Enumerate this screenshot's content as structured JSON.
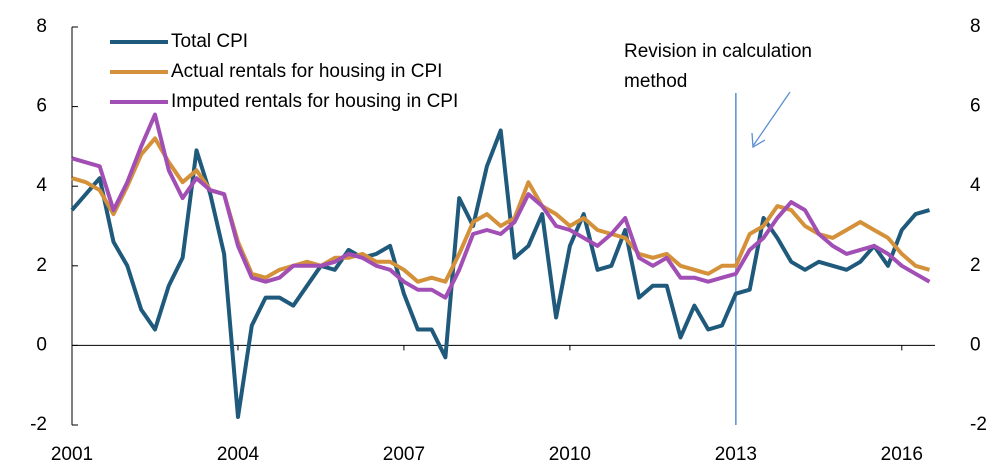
{
  "chart_data": {
    "type": "line",
    "x": [
      2001,
      2001.25,
      2001.5,
      2001.75,
      2002,
      2002.25,
      2002.5,
      2002.75,
      2003,
      2003.25,
      2003.5,
      2003.75,
      2004,
      2004.25,
      2004.5,
      2004.75,
      2005,
      2005.25,
      2005.5,
      2005.75,
      2006,
      2006.25,
      2006.5,
      2006.75,
      2007,
      2007.25,
      2007.5,
      2007.75,
      2008,
      2008.25,
      2008.5,
      2008.75,
      2009,
      2009.25,
      2009.5,
      2009.75,
      2010,
      2010.25,
      2010.5,
      2010.75,
      2011,
      2011.25,
      2011.5,
      2011.75,
      2012,
      2012.25,
      2012.5,
      2012.75,
      2013,
      2013.25,
      2013.5,
      2013.75,
      2014,
      2014.25,
      2014.5,
      2014.75,
      2015,
      2015.25,
      2015.5,
      2015.75,
      2016,
      2016.25,
      2016.5
    ],
    "series": [
      {
        "name": "Total CPI",
        "color": "#1f5a7c",
        "values": [
          3.4,
          3.8,
          4.2,
          2.6,
          2.0,
          0.9,
          0.4,
          1.5,
          2.2,
          4.9,
          3.8,
          2.3,
          -1.8,
          0.5,
          1.2,
          1.2,
          1.0,
          1.5,
          2.0,
          1.9,
          2.4,
          2.2,
          2.3,
          2.5,
          1.3,
          0.4,
          0.4,
          -0.3,
          3.7,
          3.0,
          4.5,
          5.4,
          2.2,
          2.5,
          3.3,
          0.7,
          2.5,
          3.3,
          1.9,
          2.0,
          2.9,
          1.2,
          1.5,
          1.5,
          0.2,
          1.0,
          0.4,
          0.5,
          1.3,
          1.4,
          3.2,
          2.7,
          2.1,
          1.9,
          2.1,
          2.0,
          1.9,
          2.1,
          2.5,
          2.0,
          2.9,
          3.3,
          3.4
        ]
      },
      {
        "name": "Actual rentals for housing in CPI",
        "color": "#d4913a",
        "values": [
          4.2,
          4.1,
          3.9,
          3.3,
          4.0,
          4.8,
          5.2,
          4.6,
          4.1,
          4.4,
          3.9,
          3.8,
          2.6,
          1.8,
          1.7,
          1.9,
          2.0,
          2.1,
          2.0,
          2.2,
          2.2,
          2.3,
          2.1,
          2.1,
          1.9,
          1.6,
          1.7,
          1.6,
          2.3,
          3.1,
          3.3,
          3.0,
          3.2,
          4.1,
          3.5,
          3.3,
          3.0,
          3.2,
          2.9,
          2.8,
          2.7,
          2.3,
          2.2,
          2.3,
          2.0,
          1.9,
          1.8,
          2.0,
          2.0,
          2.8,
          3.0,
          3.5,
          3.4,
          3.0,
          2.8,
          2.7,
          2.9,
          3.1,
          2.9,
          2.7,
          2.3,
          2.0,
          1.9
        ]
      },
      {
        "name": "Imputed rentals for housing in CPI",
        "color": "#a24fb5",
        "values": [
          4.7,
          4.6,
          4.5,
          3.4,
          4.1,
          5.0,
          5.8,
          4.4,
          3.7,
          4.2,
          3.9,
          3.8,
          2.5,
          1.7,
          1.6,
          1.7,
          2.0,
          2.0,
          2.0,
          2.1,
          2.3,
          2.2,
          2.0,
          1.9,
          1.6,
          1.4,
          1.4,
          1.2,
          1.9,
          2.8,
          2.9,
          2.8,
          3.1,
          3.8,
          3.5,
          3.0,
          2.9,
          2.7,
          2.5,
          2.8,
          3.2,
          2.2,
          2.0,
          2.2,
          1.7,
          1.7,
          1.6,
          1.7,
          1.8,
          2.4,
          2.7,
          3.2,
          3.6,
          3.4,
          2.8,
          2.5,
          2.3,
          2.4,
          2.5,
          2.3,
          2.0,
          1.8,
          1.6
        ]
      }
    ],
    "xlim": [
      2001,
      2016.6
    ],
    "xticks": [
      2001,
      2004,
      2007,
      2010,
      2013,
      2016
    ],
    "ylim": [
      -2,
      8
    ],
    "yticks": [
      -2,
      0,
      2,
      4,
      6,
      8
    ],
    "y2lim": [
      -2,
      8
    ],
    "y2ticks": [
      -2,
      0,
      2,
      4,
      6,
      8
    ],
    "annotation": {
      "text": "Revision in calculation method",
      "x": 2013
    },
    "legend": "upper left"
  }
}
